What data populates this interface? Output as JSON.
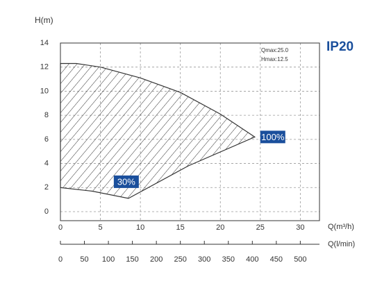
{
  "chart_data": {
    "type": "area",
    "badge": "IP20",
    "y_label": "H(m)",
    "x_label": "Q(m³/h)",
    "x2_label": "Q(l/min)",
    "notes": [
      "Qmax:25.0",
      "Hmax:12.5"
    ],
    "upper": {
      "x": [
        0,
        2,
        5,
        10,
        15,
        20,
        24.3
      ],
      "y": [
        12.3,
        12.3,
        12.0,
        11.1,
        9.9,
        8.1,
        6.2
      ]
    },
    "lower": {
      "x": [
        24.3,
        16,
        8.5,
        4,
        0
      ],
      "y": [
        6.2,
        3.8,
        1.1,
        1.7,
        2.0
      ]
    },
    "tip_label": "100%",
    "base_label": "30%",
    "color": "#1a4f9c",
    "hatch_color": "#333333",
    "xlim": [
      0,
      32.4
    ],
    "xticks": [
      0,
      5,
      10,
      15,
      20,
      25,
      30
    ],
    "ylim": [
      -0.75,
      14
    ],
    "yticks": [
      0,
      2,
      4,
      6,
      8,
      10,
      12,
      14
    ],
    "x2lim": [
      0,
      540
    ],
    "x2ticks": [
      0,
      50,
      100,
      150,
      200,
      250,
      300,
      350,
      400,
      450,
      500
    ],
    "grid": true
  }
}
